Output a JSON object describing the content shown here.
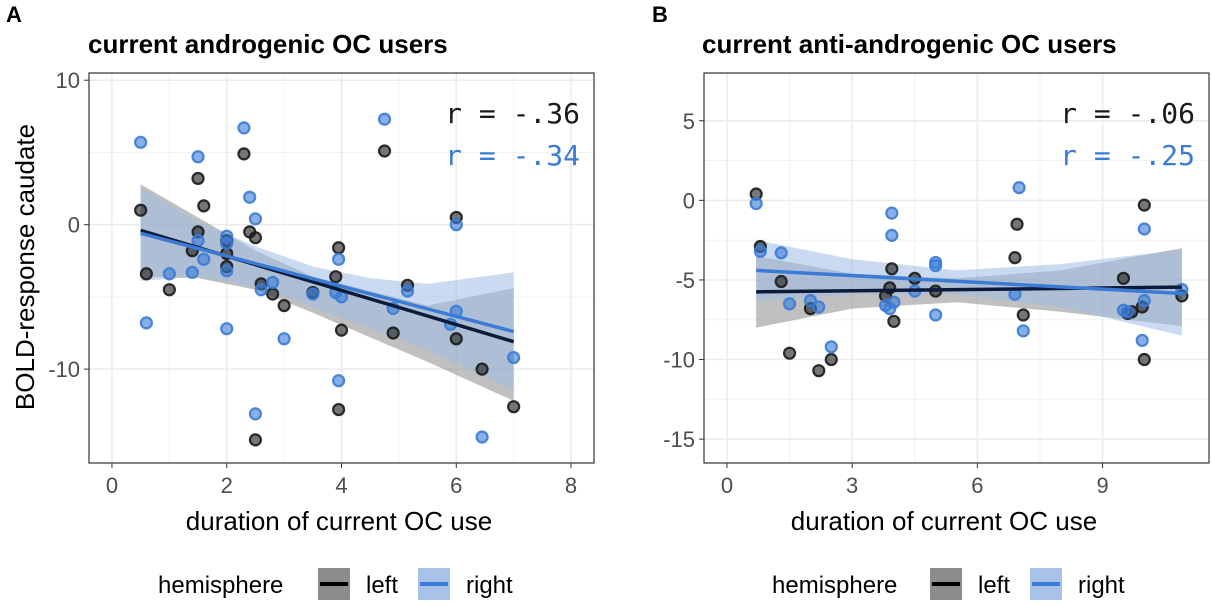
{
  "colors": {
    "left": "#1a1a1a",
    "right": "#3a7bd5",
    "grid": "#ebebeb",
    "frame": "#333333",
    "text": "#000000",
    "tick": "#4d4d4d"
  },
  "figure": {
    "ylabel": "BOLD-response caudate"
  },
  "legend": {
    "title": "hemisphere",
    "items": [
      "left",
      "right"
    ]
  },
  "chart_data": [
    {
      "type": "scatter",
      "panel": "A",
      "title": "current androgenic OC users",
      "xlabel": "duration of current OC use",
      "ylabel": "BOLD-response caudate",
      "xlim": [
        -0.4,
        8.4
      ],
      "ylim": [
        -16.5,
        10.5
      ],
      "xticks": [
        0,
        2,
        4,
        6,
        8
      ],
      "yticks": [
        -10,
        0,
        10
      ],
      "annotations": {
        "left": "r = -.36",
        "right": "r = -.34"
      },
      "series": [
        {
          "name": "left",
          "points": [
            [
              0.5,
              1.0
            ],
            [
              0.6,
              -3.4
            ],
            [
              1.0,
              -4.5
            ],
            [
              1.4,
              -1.8
            ],
            [
              1.5,
              3.2
            ],
            [
              1.5,
              -0.5
            ],
            [
              1.6,
              1.3
            ],
            [
              2.0,
              -1.1
            ],
            [
              2.0,
              -2.0
            ],
            [
              2.0,
              -2.9
            ],
            [
              2.3,
              4.9
            ],
            [
              2.4,
              -0.5
            ],
            [
              2.5,
              -14.9
            ],
            [
              2.5,
              -0.9
            ],
            [
              2.6,
              -4.1
            ],
            [
              2.8,
              -4.8
            ],
            [
              3.0,
              -5.6
            ],
            [
              3.5,
              -4.7
            ],
            [
              3.9,
              -3.6
            ],
            [
              3.95,
              -1.6
            ],
            [
              3.95,
              -12.8
            ],
            [
              4.0,
              -7.3
            ],
            [
              4.75,
              5.1
            ],
            [
              4.9,
              -7.5
            ],
            [
              5.15,
              -4.2
            ],
            [
              6.0,
              0.5
            ],
            [
              6.0,
              -7.9
            ],
            [
              6.45,
              -10.0
            ],
            [
              7.0,
              -12.6
            ]
          ],
          "fit": {
            "x": [
              0.5,
              7.0
            ],
            "y": [
              -0.4,
              -8.1
            ]
          },
          "ci": {
            "x": [
              0.5,
              1.5,
              2.5,
              3.5,
              4.5,
              5.5,
              7.0
            ],
            "lower": [
              -3.6,
              -3.7,
              -4.5,
              -6.1,
              -7.8,
              -9.5,
              -12.2
            ],
            "upper": [
              2.8,
              0.5,
              -1.8,
              -3.6,
              -4.6,
              -5.6,
              -4.4
            ]
          }
        },
        {
          "name": "right",
          "points": [
            [
              0.5,
              5.7
            ],
            [
              0.6,
              -6.8
            ],
            [
              1.0,
              -3.4
            ],
            [
              1.4,
              -3.3
            ],
            [
              1.5,
              4.7
            ],
            [
              1.5,
              -1.1
            ],
            [
              1.6,
              -2.4
            ],
            [
              2.0,
              -0.8
            ],
            [
              2.0,
              -1.3
            ],
            [
              2.0,
              -3.2
            ],
            [
              2.0,
              -7.2
            ],
            [
              2.3,
              6.7
            ],
            [
              2.4,
              1.9
            ],
            [
              2.5,
              0.4
            ],
            [
              2.5,
              -13.1
            ],
            [
              2.6,
              -4.5
            ],
            [
              2.8,
              -4.0
            ],
            [
              3.0,
              -7.9
            ],
            [
              3.5,
              -4.8
            ],
            [
              3.9,
              -4.7
            ],
            [
              3.95,
              -2.4
            ],
            [
              3.95,
              -10.8
            ],
            [
              4.0,
              -5.0
            ],
            [
              4.75,
              7.3
            ],
            [
              4.9,
              -5.8
            ],
            [
              5.15,
              -4.6
            ],
            [
              5.9,
              -6.9
            ],
            [
              6.0,
              -6.0
            ],
            [
              6.0,
              0.0
            ],
            [
              6.45,
              -14.7
            ],
            [
              7.0,
              -9.2
            ]
          ],
          "fit": {
            "x": [
              0.5,
              7.0
            ],
            "y": [
              -0.6,
              -7.4
            ]
          },
          "ci": {
            "x": [
              0.5,
              1.5,
              2.5,
              3.5,
              4.5,
              5.5,
              7.0
            ],
            "lower": [
              -3.9,
              -3.6,
              -4.3,
              -5.7,
              -7.2,
              -8.7,
              -11.4
            ],
            "upper": [
              2.6,
              0.2,
              -1.5,
              -2.9,
              -3.7,
              -4.1,
              -3.3
            ]
          }
        }
      ]
    },
    {
      "type": "scatter",
      "panel": "B",
      "title": "current anti-androgenic OC users",
      "xlabel": "duration of current OC use",
      "ylabel": "",
      "xlim": [
        -0.55,
        11.55
      ],
      "ylim": [
        -16.5,
        8.0
      ],
      "xticks": [
        0,
        3,
        6,
        9
      ],
      "yticks": [
        -15,
        -10,
        -5,
        0,
        5
      ],
      "annotations": {
        "left": "r = -.06",
        "right": "r = -.25"
      },
      "series": [
        {
          "name": "left",
          "points": [
            [
              0.7,
              0.4
            ],
            [
              0.8,
              -2.9
            ],
            [
              1.3,
              -5.1
            ],
            [
              1.5,
              -9.6
            ],
            [
              2.0,
              -6.8
            ],
            [
              2.2,
              -10.7
            ],
            [
              2.5,
              -10.0
            ],
            [
              3.8,
              -6.0
            ],
            [
              3.9,
              -5.5
            ],
            [
              3.95,
              -4.3
            ],
            [
              4.0,
              -7.6
            ],
            [
              4.5,
              -4.9
            ],
            [
              5.0,
              -5.7
            ],
            [
              6.9,
              -3.6
            ],
            [
              6.95,
              -1.5
            ],
            [
              7.1,
              -7.2
            ],
            [
              9.5,
              -4.9
            ],
            [
              9.6,
              -7.1
            ],
            [
              9.7,
              -7.0
            ],
            [
              9.95,
              -6.7
            ],
            [
              10.0,
              -0.3
            ],
            [
              10.0,
              -10.0
            ],
            [
              10.9,
              -6.0
            ]
          ],
          "fit": {
            "x": [
              0.7,
              10.9
            ],
            "y": [
              -5.75,
              -5.45
            ]
          },
          "ci": {
            "x": [
              0.7,
              3.0,
              5.5,
              8.0,
              10.9
            ],
            "lower": [
              -8.0,
              -6.8,
              -6.4,
              -7.0,
              -7.9
            ],
            "upper": [
              -3.5,
              -4.6,
              -4.9,
              -4.4,
              -3.0
            ]
          }
        },
        {
          "name": "right",
          "points": [
            [
              0.7,
              -0.2
            ],
            [
              0.8,
              -3.2
            ],
            [
              1.3,
              -3.3
            ],
            [
              1.5,
              -6.5
            ],
            [
              2.0,
              -6.3
            ],
            [
              2.2,
              -6.7
            ],
            [
              2.5,
              -9.2
            ],
            [
              3.8,
              -6.6
            ],
            [
              3.9,
              -6.8
            ],
            [
              3.95,
              -0.8
            ],
            [
              3.95,
              -2.2
            ],
            [
              4.0,
              -6.4
            ],
            [
              4.5,
              -5.7
            ],
            [
              5.0,
              -3.9
            ],
            [
              5.0,
              -4.1
            ],
            [
              5.0,
              -7.2
            ],
            [
              6.9,
              -5.9
            ],
            [
              7.0,
              0.8
            ],
            [
              7.1,
              -8.2
            ],
            [
              9.5,
              -6.9
            ],
            [
              9.6,
              -7.0
            ],
            [
              9.95,
              -8.8
            ],
            [
              10.0,
              -1.8
            ],
            [
              10.0,
              -6.3
            ],
            [
              10.9,
              -5.6
            ]
          ],
          "fit": {
            "x": [
              0.7,
              10.9
            ],
            "y": [
              -4.4,
              -5.85
            ]
          },
          "ci": {
            "x": [
              0.7,
              3.0,
              5.5,
              8.0,
              10.9
            ],
            "lower": [
              -6.3,
              -5.9,
              -5.9,
              -6.7,
              -8.5
            ],
            "upper": [
              -2.5,
              -3.7,
              -4.4,
              -4.0,
              -3.1
            ]
          }
        }
      ]
    }
  ]
}
